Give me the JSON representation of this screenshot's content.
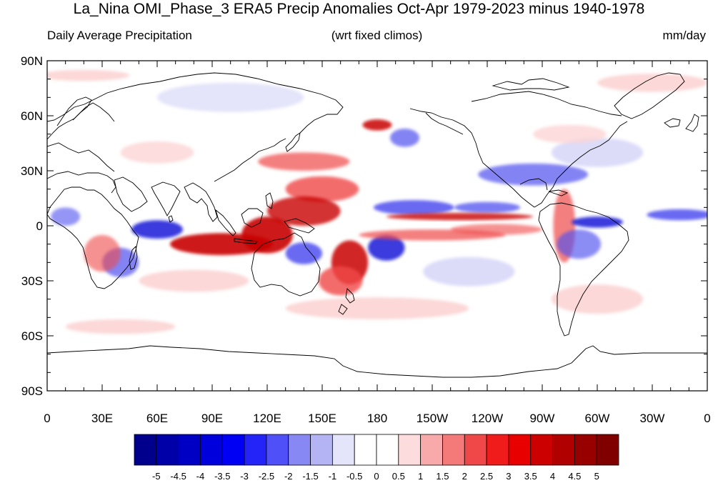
{
  "title": "La_Nina OMI_Phase_3 ERA5 Precip Anomalies Oct-Apr 1979-2023 minus 1940-1978",
  "subtitle_left": "Daily Average Precipitation",
  "subtitle_center": "(wrt fixed climos)",
  "subtitle_right": "mm/day",
  "map": {
    "projection": "cylindrical-equidistant",
    "lon_range": [
      0,
      360
    ],
    "lat_range": [
      -90,
      90
    ],
    "lat_ticks": [
      "90N",
      "60N",
      "30N",
      "0",
      "30S",
      "60S",
      "90S"
    ],
    "lon_ticks": [
      "0",
      "30E",
      "60E",
      "90E",
      "120E",
      "150E",
      "180",
      "150W",
      "120W",
      "90W",
      "60W",
      "30W",
      "0"
    ]
  },
  "colorbar": {
    "levels": [
      "-5",
      "-4.5",
      "-4",
      "-3.5",
      "-3",
      "-2.5",
      "-2",
      "-1.5",
      "-1",
      "-0.5",
      "0",
      "0.5",
      "1",
      "1.5",
      "2",
      "2.5",
      "3",
      "3.5",
      "4",
      "4.5",
      "5"
    ],
    "colors": [
      "#00008c",
      "#0000a8",
      "#0000c4",
      "#0000dc",
      "#0000f4",
      "#2424f8",
      "#5050f8",
      "#8888f4",
      "#b4b4f4",
      "#e4e4fa",
      "#ffffff",
      "#ffffff",
      "#fcdcdc",
      "#f8aaaa",
      "#f47a7a",
      "#f04848",
      "#f01c1c",
      "#e80000",
      "#cc0000",
      "#b00000",
      "#980000",
      "#800000"
    ]
  },
  "anomaly_colors": {
    "strong_pos": "#c80000",
    "pos": "#f04848",
    "weak_pos": "#fcd4d4",
    "strong_neg": "#1414d8",
    "neg": "#5050f0",
    "weak_neg": "#d8d8f8"
  }
}
